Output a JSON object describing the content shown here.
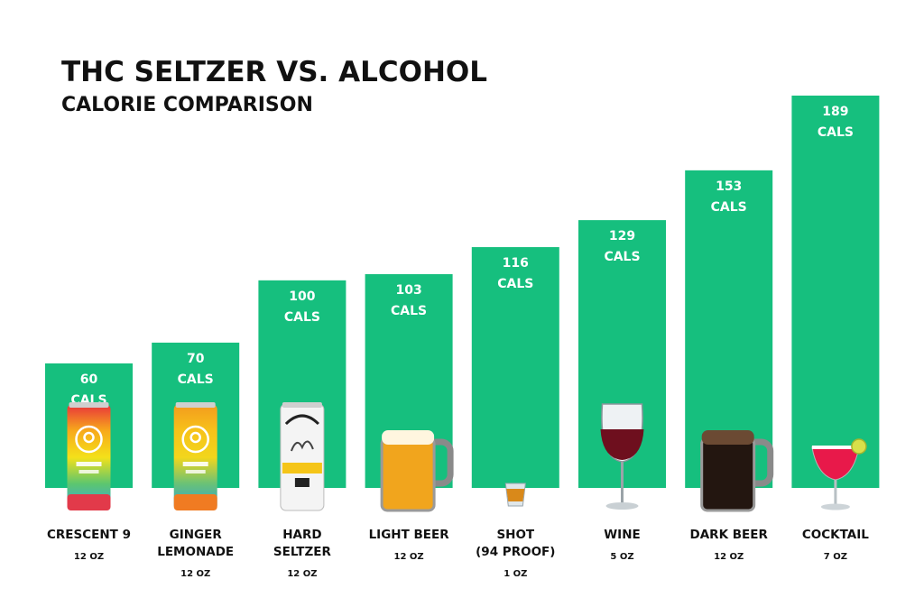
{
  "title": "THC SELTZER VS. ALCOHOL",
  "subtitle": "CALORIE COMPARISON",
  "colors": {
    "bar": "#16bf7e",
    "text": "#111111"
  },
  "chart_data": {
    "type": "bar",
    "title": "THC SELTZER VS. ALCOHOL",
    "subtitle": "CALORIE COMPARISON",
    "value_suffix": "CALS",
    "categories": [
      "CRESCENT 9",
      "GINGER LEMONADE",
      "HARD SELTZER",
      "LIGHT BEER",
      "SHOT (94 PROOF)",
      "WINE",
      "DARK BEER",
      "COCKTAIL"
    ],
    "category_lines": [
      [
        "CRESCENT 9"
      ],
      [
        "GINGER",
        "LEMONADE"
      ],
      [
        "HARD",
        "SELTZER"
      ],
      [
        "LIGHT BEER"
      ],
      [
        "SHOT",
        "(94 PROOF)"
      ],
      [
        "WINE"
      ],
      [
        "DARK BEER"
      ],
      [
        "COCKTAIL"
      ]
    ],
    "serving_sizes": [
      "12 OZ",
      "12 OZ",
      "12 OZ",
      "12 OZ",
      "1 OZ",
      "5 OZ",
      "12 OZ",
      "7 OZ"
    ],
    "values": [
      60,
      70,
      100,
      103,
      116,
      129,
      153,
      189
    ],
    "ylim": [
      0,
      189
    ],
    "grid": false,
    "legend": "none",
    "icons": [
      "thc-seltzer-can-icon",
      "ginger-lemonade-can-icon",
      "hard-seltzer-can-icon",
      "beer-mug-icon",
      "shot-glass-icon",
      "wine-glass-icon",
      "dark-beer-mug-icon",
      "cocktail-glass-icon"
    ]
  }
}
